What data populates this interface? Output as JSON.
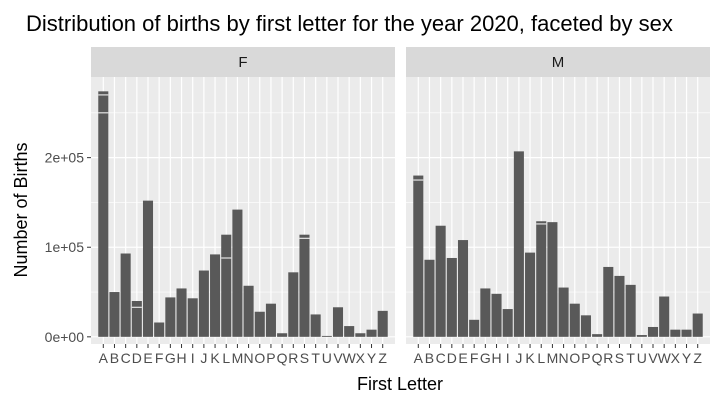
{
  "chart_data": {
    "type": "bar",
    "title": "Distribution of births by first letter for the year 2020, faceted by sex",
    "xlabel": "First Letter",
    "ylabel": "Number of Births",
    "ylim": [
      -8000,
      290000
    ],
    "yticks": [
      0,
      100000,
      200000
    ],
    "ytick_labels": [
      "0e+00",
      "1e+05",
      "2e+05"
    ],
    "categories": [
      "A",
      "B",
      "C",
      "D",
      "E",
      "F",
      "G",
      "H",
      "I",
      "J",
      "K",
      "L",
      "M",
      "N",
      "O",
      "P",
      "Q",
      "R",
      "S",
      "T",
      "U",
      "V",
      "W",
      "X",
      "Y",
      "Z"
    ],
    "grid": true,
    "facets": [
      {
        "label": "F",
        "values": [
          274000,
          50000,
          93000,
          40000,
          152000,
          16000,
          44000,
          54000,
          43000,
          74000,
          92000,
          114000,
          142000,
          57000,
          28000,
          37000,
          4000,
          72000,
          114000,
          25000,
          1000,
          33000,
          12000,
          4000,
          8000,
          29000
        ],
        "stack_marks": [
          {
            "letter": "A",
            "value": 250000
          },
          {
            "letter": "A",
            "value": 270000
          },
          {
            "letter": "D",
            "value": 33000
          },
          {
            "letter": "L",
            "value": 88000
          },
          {
            "letter": "S",
            "value": 110000
          }
        ]
      },
      {
        "label": "M",
        "values": [
          180000,
          86000,
          124000,
          88000,
          108000,
          19000,
          54000,
          48000,
          31000,
          207000,
          94000,
          129000,
          128000,
          55000,
          37000,
          24000,
          3000,
          78000,
          68000,
          58000,
          2000,
          11000,
          45000,
          8000,
          8000,
          26000
        ],
        "stack_marks": [
          {
            "letter": "A",
            "value": 175000
          },
          {
            "letter": "L",
            "value": 126000
          }
        ]
      }
    ]
  }
}
